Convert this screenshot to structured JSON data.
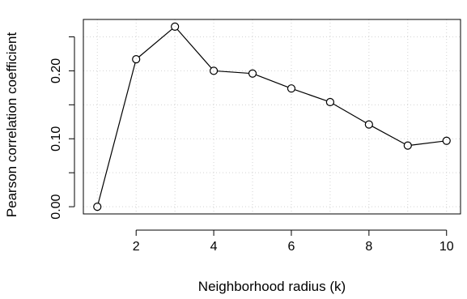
{
  "chart_data": {
    "type": "line",
    "title": "",
    "xlabel": "Neighborhood radius (k)",
    "ylabel": "Pearson correlation coefficient",
    "x": [
      1,
      2,
      3,
      4,
      5,
      6,
      7,
      8,
      9,
      10
    ],
    "series": [
      {
        "values": [
          0.0,
          0.217,
          0.265,
          0.2,
          0.196,
          0.174,
          0.154,
          0.121,
          0.09,
          0.097
        ]
      }
    ],
    "xlim": [
      0.64,
      10.36
    ],
    "ylim": [
      -0.0106,
      0.2756
    ],
    "x_ticks": [
      2,
      4,
      6,
      8,
      10
    ],
    "x_tick_labels": [
      "2",
      "4",
      "6",
      "8",
      "10"
    ],
    "y_ticks": [
      0.0,
      0.05,
      0.1,
      0.15,
      0.2,
      0.25
    ],
    "y_tick_labels": [
      "0.00",
      "",
      "0.10",
      "",
      "0.20",
      ""
    ],
    "grid": true,
    "grid_style": "dotted",
    "marker": "open-circle",
    "line_color": "#000000",
    "grid_color": "#d3d3d3"
  }
}
